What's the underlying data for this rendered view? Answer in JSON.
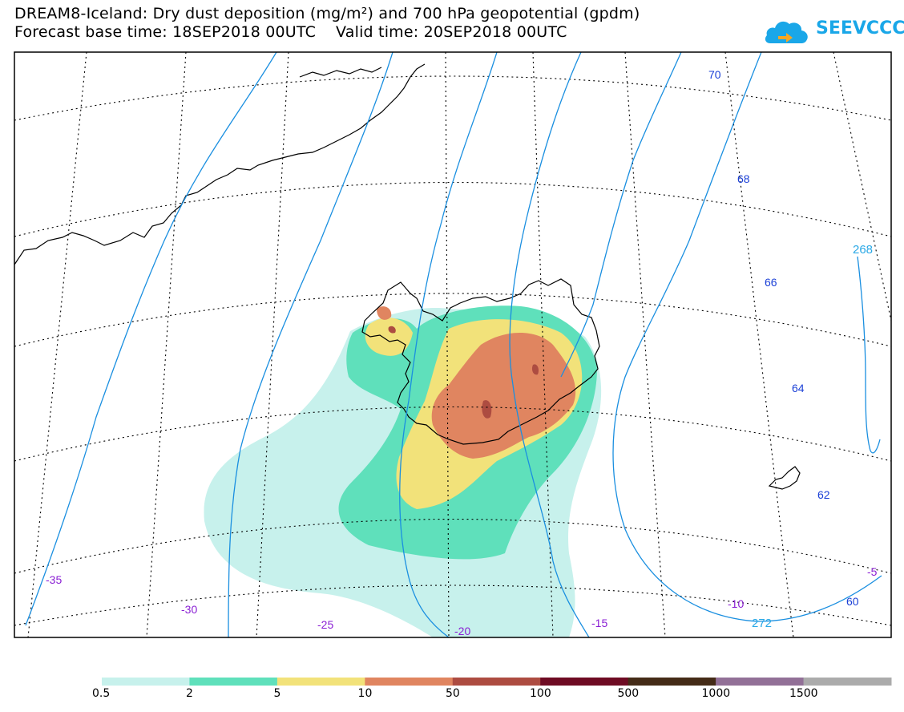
{
  "title_line1": "DREAM8-Iceland: Dry dust deposition (mg/m²) and 700 hPa geopotential (gpdm)",
  "title_line2": "Forecast base time: 18SEP2018 00UTC    Valid time: 20SEP2018 00UTC",
  "logo_text": "SEEVCCC",
  "map": {
    "geopotential_labels": [
      "70",
      "68",
      "66",
      "64",
      "62",
      "60"
    ],
    "temperature_labels": [
      "268",
      "272"
    ],
    "longitude_labels": [
      "-35",
      "-30",
      "-25",
      "-20",
      "-15",
      "-10",
      "-5"
    ]
  },
  "legend": {
    "levels": [
      "0.5",
      "2",
      "5",
      "10",
      "50",
      "100",
      "500",
      "1000",
      "1500"
    ],
    "colors": [
      "#c7f1ec",
      "#5fe0bb",
      "#f2e27a",
      "#e08560",
      "#ad4c41",
      "#6e0b23",
      "#442b17",
      "#927097",
      "#ababab"
    ]
  }
}
